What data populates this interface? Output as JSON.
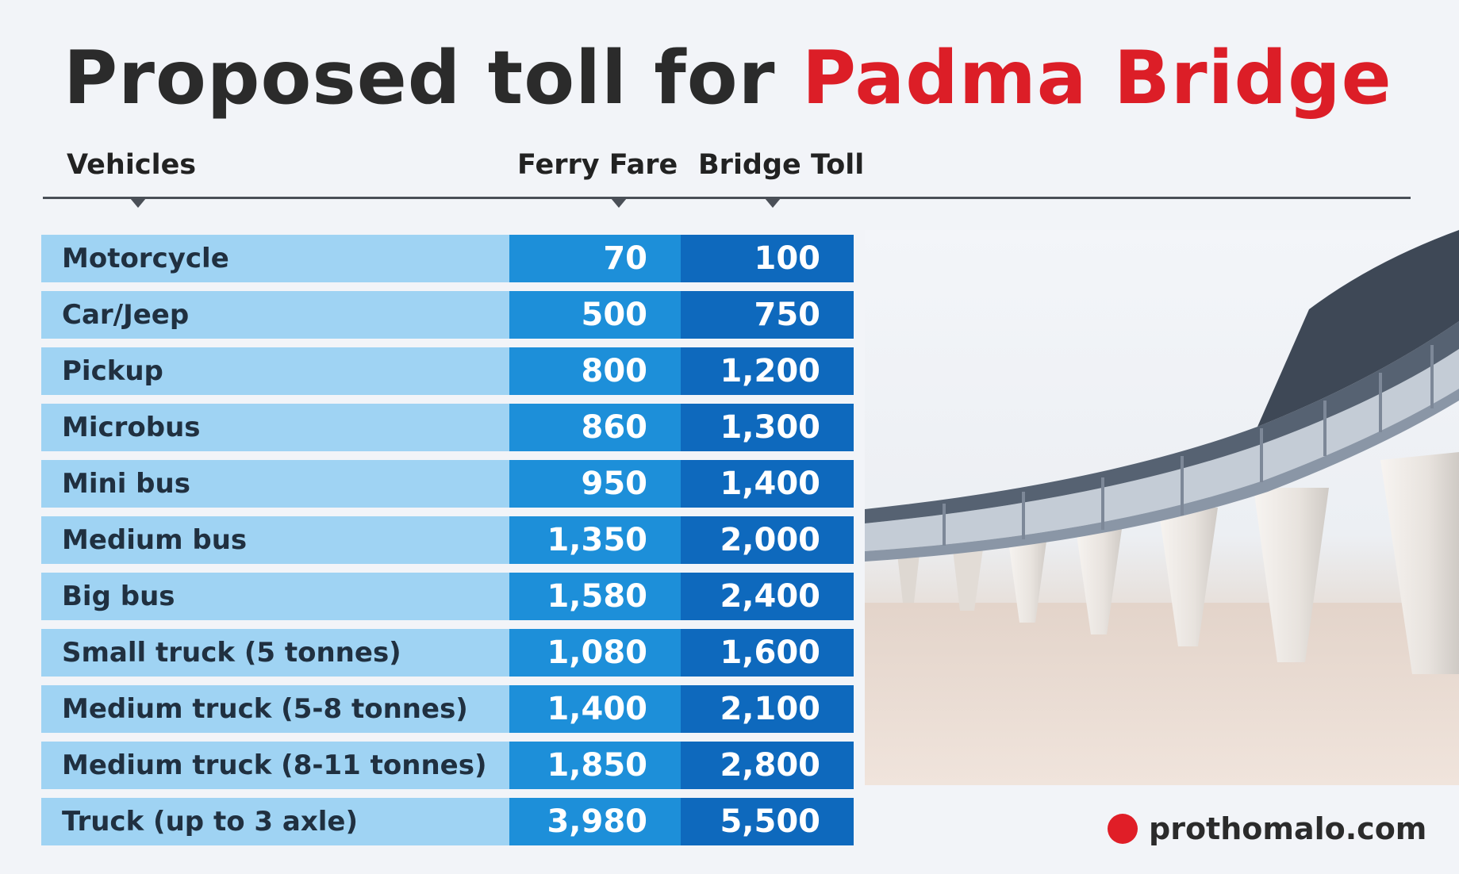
{
  "title": {
    "main": "Proposed toll for ",
    "accent": "Padma Bridge"
  },
  "colors": {
    "title_accent": "#dc1e27",
    "vehicle_cell": "#9fd3f3",
    "ferry_cell": "#1d8fd9",
    "toll_cell": "#0e69bd",
    "brand_dot": "#e01e27"
  },
  "chart_data": {
    "type": "table",
    "columns": [
      "Vehicles",
      "Ferry Fare",
      "Bridge Toll"
    ],
    "rows": [
      {
        "vehicle": "Motorcycle",
        "ferry_fare": "70",
        "bridge_toll": "100"
      },
      {
        "vehicle": "Car/Jeep",
        "ferry_fare": "500",
        "bridge_toll": "750"
      },
      {
        "vehicle": "Pickup",
        "ferry_fare": "800",
        "bridge_toll": "1,200"
      },
      {
        "vehicle": "Microbus",
        "ferry_fare": "860",
        "bridge_toll": "1,300"
      },
      {
        "vehicle": "Mini bus",
        "ferry_fare": "950",
        "bridge_toll": "1,400"
      },
      {
        "vehicle": "Medium bus",
        "ferry_fare": "1,350",
        "bridge_toll": "2,000"
      },
      {
        "vehicle": "Big bus",
        "ferry_fare": "1,580",
        "bridge_toll": "2,400"
      },
      {
        "vehicle": "Small truck (5 tonnes)",
        "ferry_fare": "1,080",
        "bridge_toll": "1,600"
      },
      {
        "vehicle": "Medium truck (5-8 tonnes)",
        "ferry_fare": "1,400",
        "bridge_toll": "2,100"
      },
      {
        "vehicle": "Medium truck (8-11 tonnes)",
        "ferry_fare": "1,850",
        "bridge_toll": "2,800"
      },
      {
        "vehicle": "Truck (up to 3 axle)",
        "ferry_fare": "3,980",
        "bridge_toll": "5,500"
      }
    ]
  },
  "source": "prothomalo.com"
}
